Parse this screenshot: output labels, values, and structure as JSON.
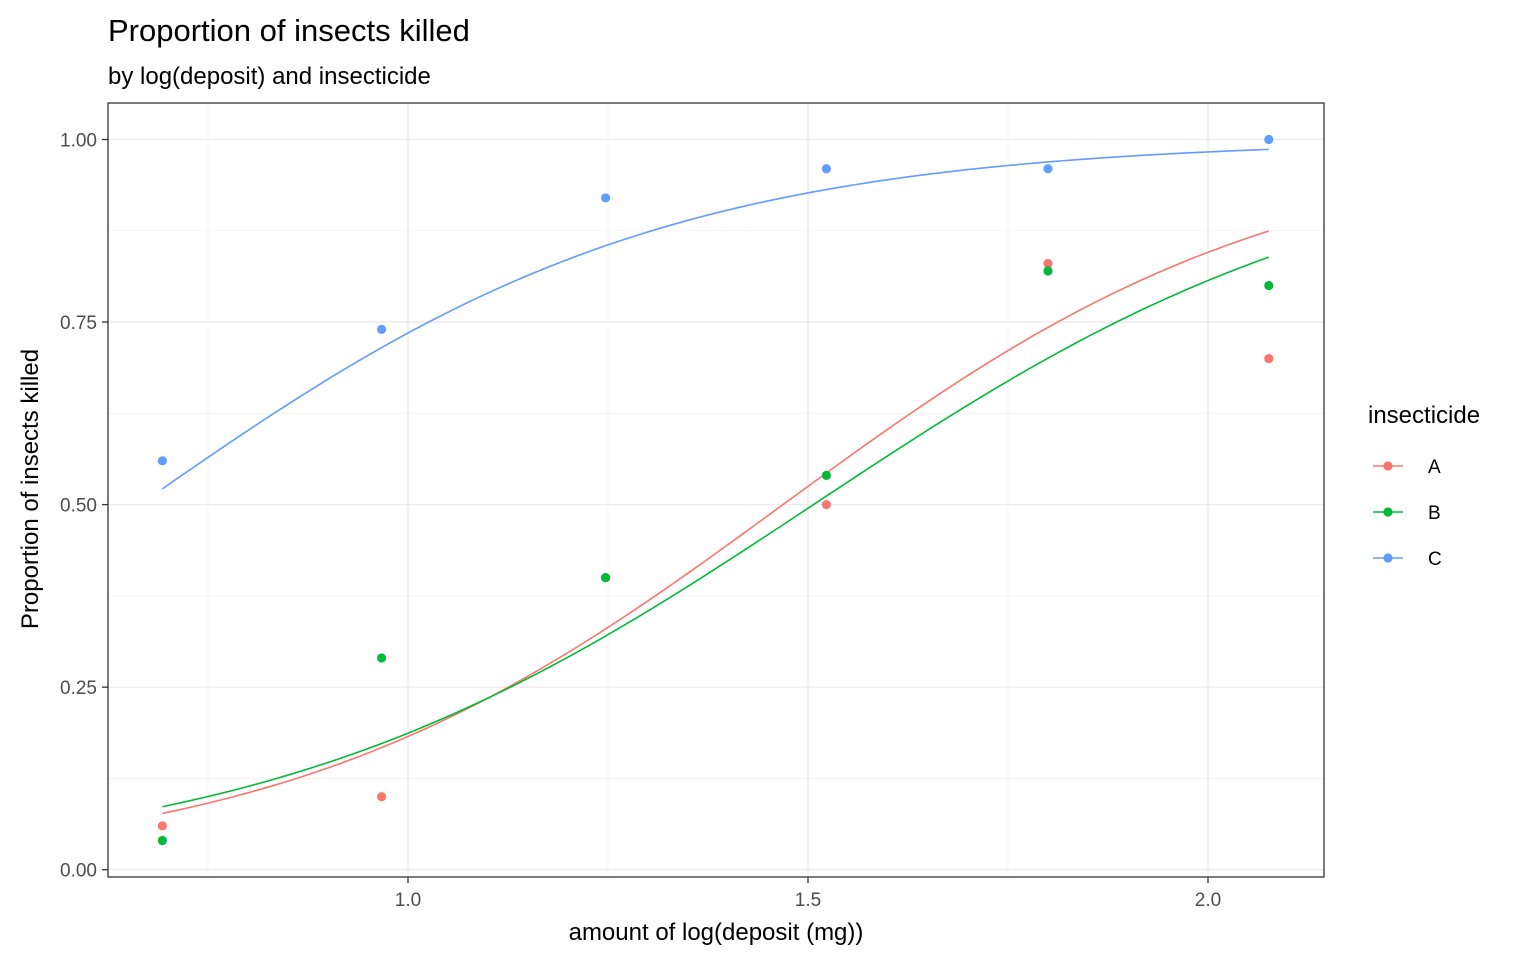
{
  "chart_data": {
    "type": "scatter",
    "title": "Proportion of insects killed",
    "subtitle": "by log(deposit) and insecticide",
    "xlabel": "amount of log(deposit (mg))",
    "ylabel": "Proportion of insects killed",
    "xlim": [
      0.625,
      2.145
    ],
    "ylim": [
      -0.01,
      1.05
    ],
    "xticks": [
      1.0,
      1.5,
      2.0
    ],
    "xtick_labels": [
      "1.0",
      "1.5",
      "2.0"
    ],
    "yticks": [
      0.0,
      0.25,
      0.5,
      0.75,
      1.0
    ],
    "ytick_labels": [
      "0.00",
      "0.25",
      "0.50",
      "0.75",
      "1.00"
    ],
    "grid": true,
    "legend": {
      "title": "insecticide",
      "position": "right"
    },
    "x": [
      0.693,
      0.967,
      1.247,
      1.523,
      1.8,
      2.076
    ],
    "series": [
      {
        "name": "A",
        "color": "#F8766D",
        "points": [
          0.06,
          0.1,
          0.4,
          0.5,
          0.83,
          0.7
        ],
        "fit": {
          "intercept": -4.7,
          "slope": 3.2
        }
      },
      {
        "name": "B",
        "color": "#00BA38",
        "points": [
          0.04,
          0.29,
          0.4,
          0.54,
          0.82,
          0.8
        ],
        "fit": {
          "intercept": -4.37,
          "slope": 2.9
        }
      },
      {
        "name": "C",
        "color": "#619CFF",
        "points": [
          0.56,
          0.74,
          0.92,
          0.96,
          0.96,
          1.0
        ],
        "fit": {
          "intercept": -2.02,
          "slope": 3.04
        }
      }
    ]
  }
}
